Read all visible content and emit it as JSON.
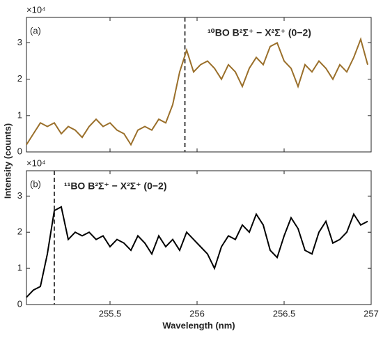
{
  "ylabel": "Intensity (counts)",
  "chart_data": [
    {
      "type": "line",
      "panel_label": "(a)",
      "annotation": "¹⁰BO B²Σ⁺ − X²Σ⁺ (0−2)",
      "annotation_color": "#a97f2c",
      "y_exponent_label": "×10⁴",
      "vline": 255.93,
      "show_xticklabels": false,
      "xlim": [
        255.02,
        257
      ],
      "xticks": [
        255.5,
        256,
        256.5,
        257
      ],
      "ylim": [
        0,
        3.7
      ],
      "yticks": [
        0,
        1,
        2,
        3
      ],
      "x": [
        255.02,
        255.06,
        255.1,
        255.14,
        255.18,
        255.22,
        255.26,
        255.3,
        255.34,
        255.38,
        255.42,
        255.46,
        255.5,
        255.54,
        255.58,
        255.62,
        255.66,
        255.7,
        255.74,
        255.78,
        255.82,
        255.86,
        255.9,
        255.94,
        255.98,
        256.02,
        256.06,
        256.1,
        256.14,
        256.18,
        256.22,
        256.26,
        256.3,
        256.34,
        256.38,
        256.42,
        256.46,
        256.5,
        256.54,
        256.58,
        256.62,
        256.66,
        256.7,
        256.74,
        256.78,
        256.82,
        256.86,
        256.9,
        256.94,
        256.98
      ],
      "series": [
        {
          "color": "#9a6f2a",
          "values": [
            0.2,
            0.5,
            0.8,
            0.7,
            0.8,
            0.5,
            0.7,
            0.6,
            0.4,
            0.7,
            0.9,
            0.7,
            0.8,
            0.6,
            0.5,
            0.2,
            0.6,
            0.7,
            0.6,
            0.9,
            0.8,
            1.3,
            2.2,
            2.8,
            2.2,
            2.4,
            2.5,
            2.3,
            2.0,
            2.4,
            2.2,
            1.8,
            2.3,
            2.6,
            2.4,
            2.9,
            3.0,
            2.5,
            2.3,
            1.8,
            2.4,
            2.2,
            2.5,
            2.3,
            2.0,
            2.4,
            2.2,
            2.6,
            3.1,
            2.4
          ]
        }
      ]
    },
    {
      "type": "line",
      "panel_label": "(b)",
      "annotation": "¹¹BO B²Σ⁺ − X²Σ⁺ (0−2)",
      "annotation_color": "#000000",
      "y_exponent_label": "×10⁴",
      "vline": 255.18,
      "show_xticklabels": true,
      "xlabel": "Wavelength (nm)",
      "xlim": [
        255.02,
        257
      ],
      "xticks": [
        255.5,
        256,
        256.5,
        257
      ],
      "ylim": [
        0,
        3.7
      ],
      "yticks": [
        0,
        1,
        2,
        3
      ],
      "x": [
        255.02,
        255.06,
        255.1,
        255.14,
        255.18,
        255.22,
        255.26,
        255.3,
        255.34,
        255.38,
        255.42,
        255.46,
        255.5,
        255.54,
        255.58,
        255.62,
        255.66,
        255.7,
        255.74,
        255.78,
        255.82,
        255.86,
        255.9,
        255.94,
        255.98,
        256.02,
        256.06,
        256.1,
        256.14,
        256.18,
        256.22,
        256.26,
        256.3,
        256.34,
        256.38,
        256.42,
        256.46,
        256.5,
        256.54,
        256.58,
        256.62,
        256.66,
        256.7,
        256.74,
        256.78,
        256.82,
        256.86,
        256.9,
        256.94,
        256.98
      ],
      "series": [
        {
          "color": "#000000",
          "values": [
            0.2,
            0.4,
            0.5,
            1.4,
            2.6,
            2.7,
            1.8,
            2.0,
            1.9,
            2.0,
            1.8,
            1.9,
            1.6,
            1.8,
            1.7,
            1.5,
            1.9,
            1.7,
            1.4,
            1.9,
            1.6,
            1.8,
            1.5,
            2.0,
            1.8,
            1.6,
            1.4,
            1.0,
            1.6,
            1.9,
            1.8,
            2.2,
            2.0,
            2.5,
            2.2,
            1.5,
            1.3,
            1.9,
            2.4,
            2.1,
            1.5,
            1.4,
            2.0,
            2.3,
            1.7,
            1.8,
            2.0,
            2.5,
            2.2,
            2.3
          ]
        }
      ]
    }
  ]
}
